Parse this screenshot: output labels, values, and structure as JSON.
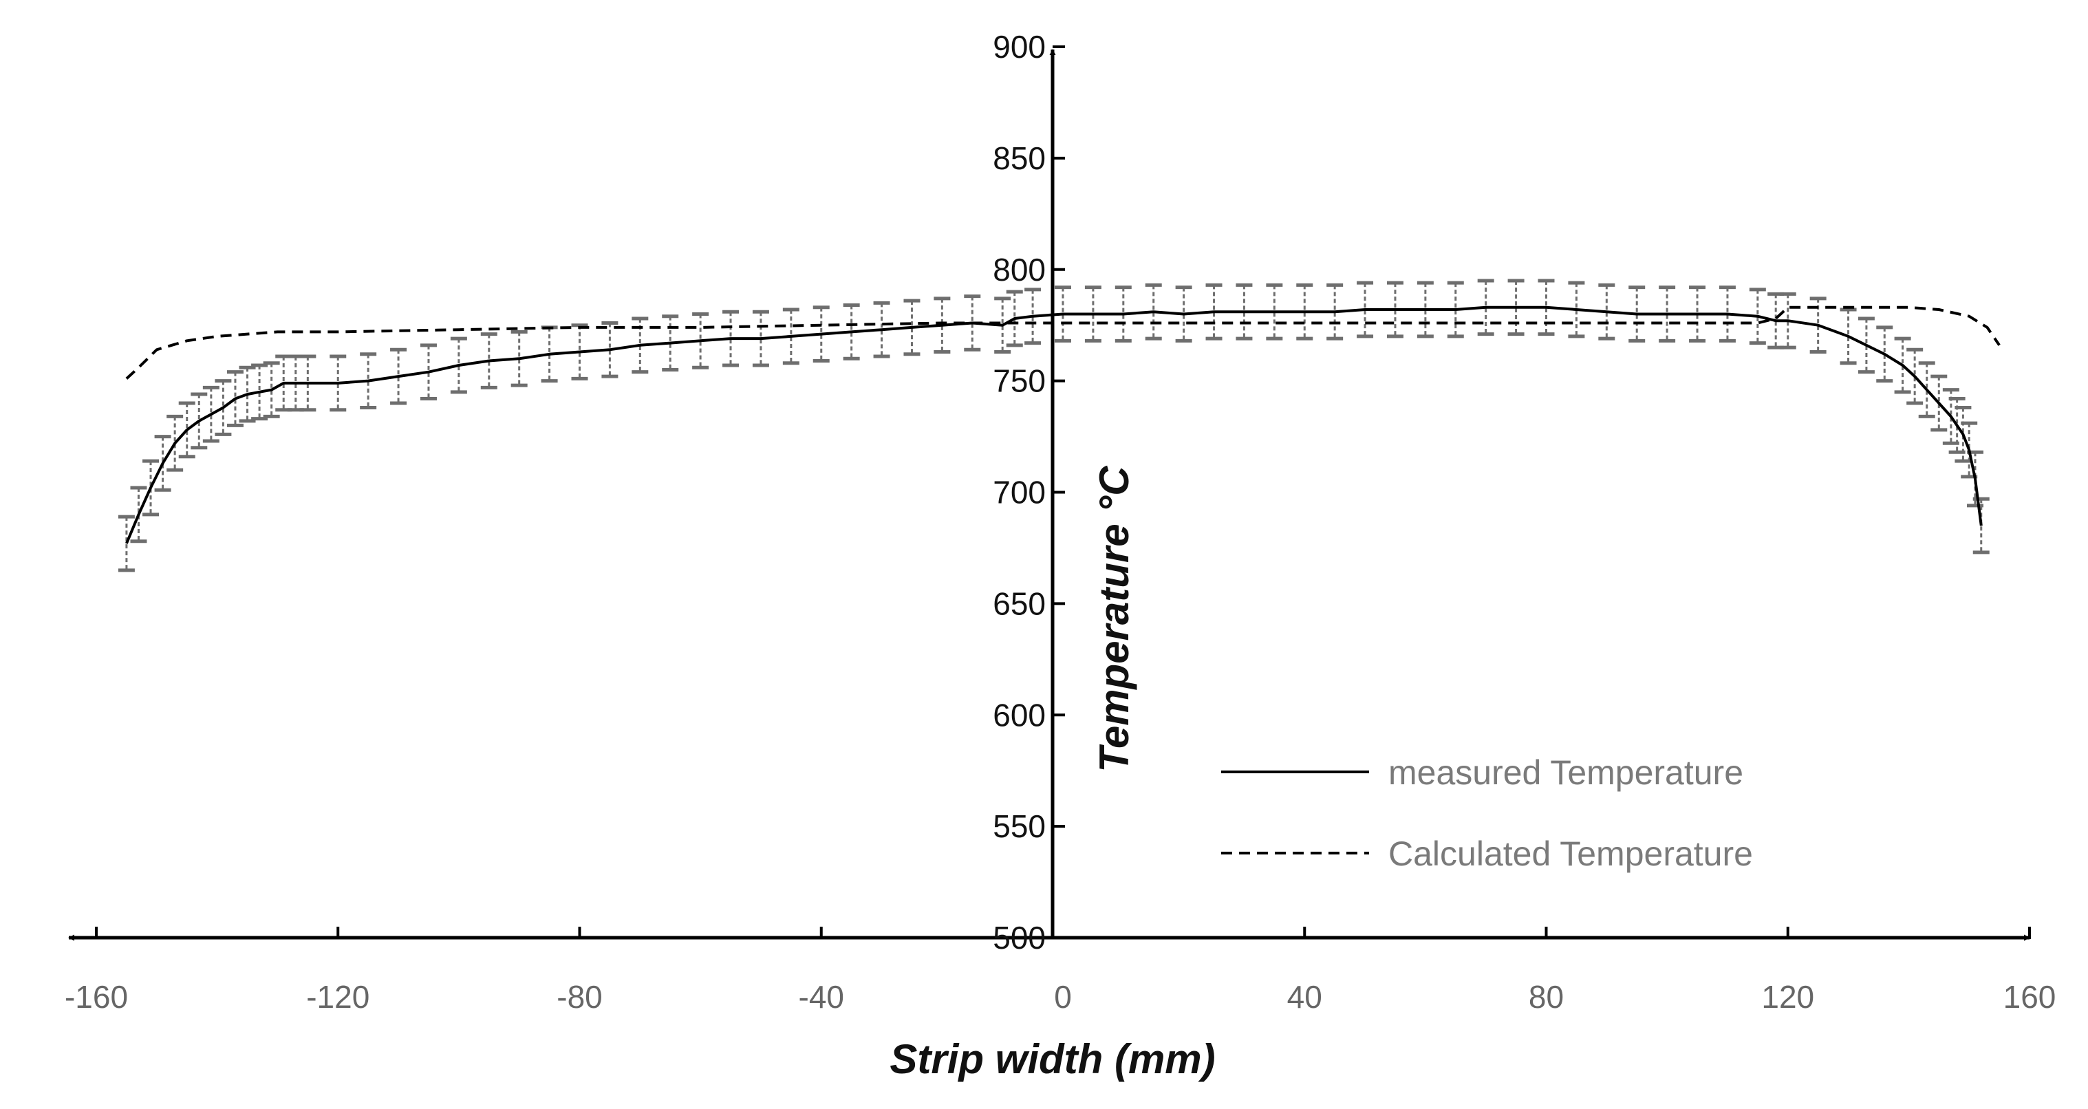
{
  "chart_data": {
    "type": "line",
    "title": "",
    "xlabel": "Strip width (mm)",
    "ylabel": "Temperature  °C",
    "xlim": [
      -160,
      160
    ],
    "ylim": [
      500,
      900
    ],
    "xticks": [
      -160,
      -120,
      -80,
      -40,
      0,
      40,
      80,
      120,
      160
    ],
    "yticks": [
      500,
      550,
      600,
      650,
      700,
      750,
      800,
      850,
      900
    ],
    "xtick_labels": [
      "-160",
      "-120",
      "-80",
      "-40",
      "0",
      "40",
      "80",
      "120",
      "160"
    ],
    "ytick_labels": [
      "500",
      "550",
      "600",
      "650",
      "700",
      "750",
      "800",
      "850",
      "900"
    ],
    "grid": false,
    "legend_position": "bottom-right",
    "colors": {
      "axis": "#000000",
      "measured": "#000000",
      "calculated": "#000000",
      "error_bars": "#6e6e6e",
      "tick_label_x": "#666666",
      "legend_text": "#7a7a7a"
    },
    "error_bar_half_width": 12,
    "series": [
      {
        "name": "measured Temperature",
        "style": "solid",
        "has_error_bars": true,
        "x": [
          -155,
          -153,
          -151,
          -149,
          -147,
          -145,
          -143,
          -141,
          -139,
          -137,
          -135,
          -133,
          -131,
          -129,
          -127,
          -125,
          -120,
          -115,
          -110,
          -105,
          -100,
          -95,
          -90,
          -85,
          -80,
          -75,
          -70,
          -65,
          -60,
          -55,
          -50,
          -45,
          -40,
          -35,
          -30,
          -25,
          -20,
          -15,
          -10,
          -8,
          -5,
          0,
          5,
          10,
          15,
          20,
          25,
          30,
          35,
          40,
          45,
          50,
          55,
          60,
          65,
          70,
          75,
          80,
          85,
          90,
          95,
          100,
          105,
          110,
          115,
          118,
          120,
          125,
          130,
          133,
          136,
          139,
          141,
          143,
          145,
          147,
          148,
          149,
          150,
          151,
          152
        ],
        "y": [
          677,
          690,
          702,
          713,
          722,
          728,
          732,
          735,
          738,
          742,
          744,
          745,
          746,
          749,
          749,
          749,
          749,
          750,
          752,
          754,
          757,
          759,
          760,
          762,
          763,
          764,
          766,
          767,
          768,
          769,
          769,
          770,
          771,
          772,
          773,
          774,
          775,
          776,
          775,
          778,
          779,
          780,
          780,
          780,
          781,
          780,
          781,
          781,
          781,
          781,
          781,
          782,
          782,
          782,
          782,
          783,
          783,
          783,
          782,
          781,
          780,
          780,
          780,
          780,
          779,
          777,
          777,
          775,
          770,
          766,
          762,
          757,
          752,
          746,
          740,
          734,
          730,
          726,
          719,
          706,
          685
        ]
      },
      {
        "name": "Calculated Temperature",
        "style": "dashed",
        "has_error_bars": false,
        "x": [
          -155,
          -153,
          -150,
          -145,
          -140,
          -130,
          -120,
          -100,
          -80,
          -60,
          -40,
          -20,
          -10,
          -5,
          0,
          10,
          20,
          40,
          60,
          80,
          100,
          110,
          115,
          118,
          120,
          130,
          140,
          145,
          150,
          153,
          155
        ],
        "y": [
          751,
          756,
          764,
          768,
          770,
          772,
          772,
          773,
          774,
          774,
          775,
          776,
          776,
          776,
          776,
          776,
          776,
          776,
          776,
          776,
          776,
          776,
          776,
          778,
          783,
          783,
          783,
          782,
          779,
          774,
          766
        ]
      }
    ]
  }
}
